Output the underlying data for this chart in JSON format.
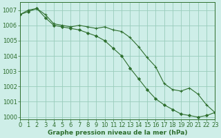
{
  "xlabel": "Graphe pression niveau de la mer (hPa)",
  "bg_color": "#ceeee8",
  "grid_color": "#99ccbb",
  "line_color": "#2d6e2d",
  "hours": [
    0,
    1,
    2,
    3,
    4,
    5,
    6,
    7,
    8,
    9,
    10,
    11,
    12,
    13,
    14,
    15,
    16,
    17,
    18,
    19,
    20,
    21,
    22,
    23
  ],
  "series1": [
    1006.7,
    1006.9,
    1007.1,
    1006.5,
    1006.0,
    1005.9,
    1005.8,
    1005.7,
    1005.5,
    1005.3,
    1005.0,
    1004.5,
    1004.0,
    1003.2,
    1002.5,
    1001.8,
    1001.2,
    1000.8,
    1000.5,
    1000.2,
    1000.1,
    1000.0,
    1000.1,
    1000.3
  ],
  "series2": [
    1006.7,
    1007.0,
    1007.1,
    1006.7,
    1006.1,
    1006.0,
    1005.9,
    1006.0,
    1005.9,
    1005.8,
    1005.9,
    1005.7,
    1005.6,
    1005.2,
    1004.6,
    1003.9,
    1003.3,
    1002.2,
    1001.8,
    1001.7,
    1001.9,
    1001.5,
    1000.8,
    1000.3
  ],
  "ylim_min": 999.85,
  "ylim_max": 1007.5,
  "yticks": [
    1000,
    1001,
    1002,
    1003,
    1004,
    1005,
    1006,
    1007
  ],
  "fontsize_label": 6.5,
  "fontsize_tick": 6
}
